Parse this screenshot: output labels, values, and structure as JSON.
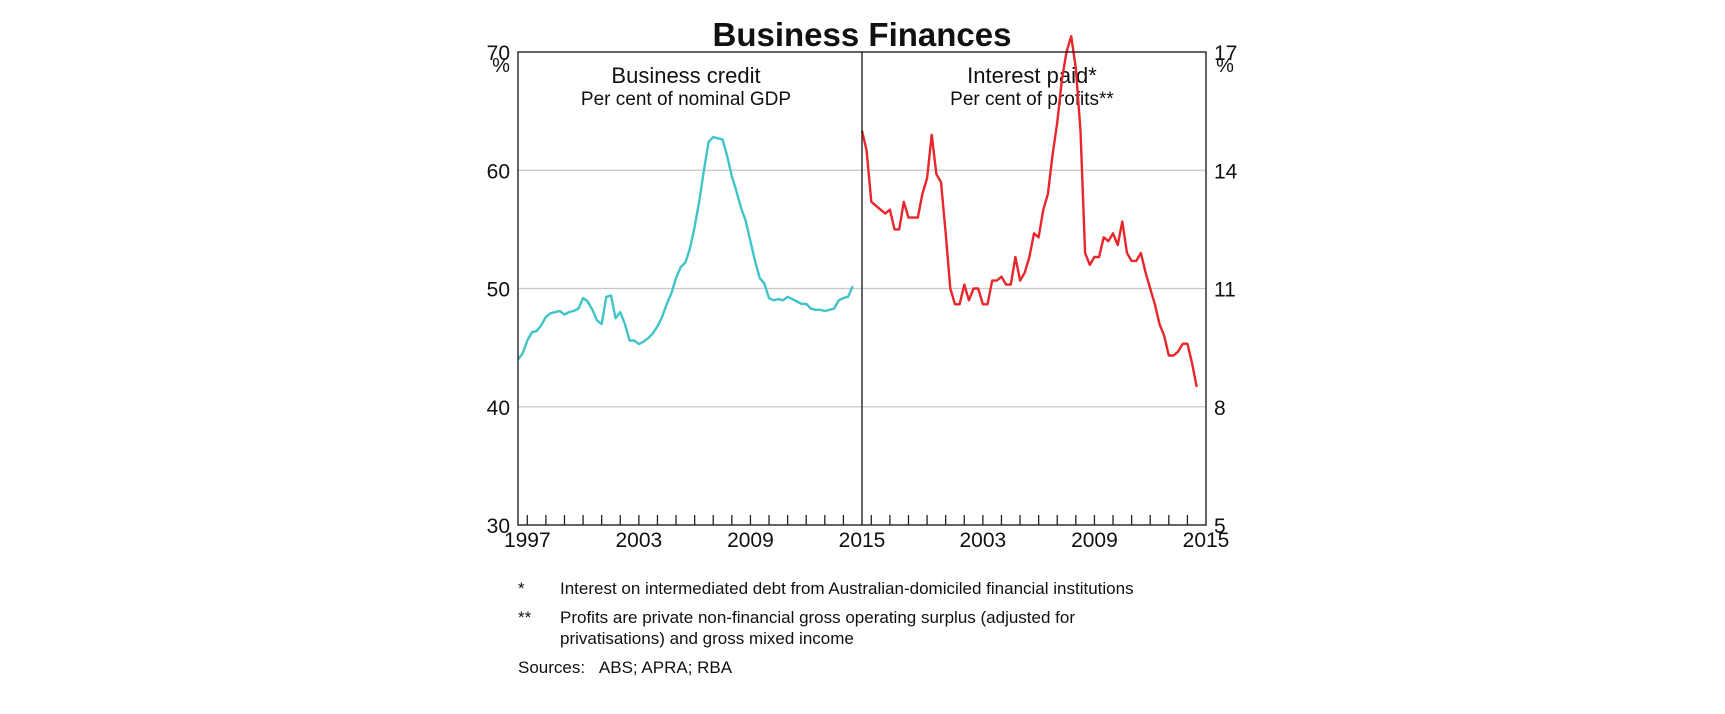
{
  "title": "Business Finances",
  "chart_data": [
    {
      "type": "line",
      "title": "Business credit",
      "subtitle": "Per cent of nominal GDP",
      "ylabel": "%",
      "axis_side": "left",
      "ylim": [
        30,
        70
      ],
      "yticks": [
        30,
        40,
        50,
        60,
        70
      ],
      "xlim": [
        1997,
        2015.5
      ],
      "xticks": [
        1997,
        2003,
        2009,
        2015
      ],
      "grid": true,
      "series": [
        {
          "color": "#3fc4c8",
          "x": [
            1997.0,
            1997.25,
            1997.5,
            1997.75,
            1998.0,
            1998.25,
            1998.5,
            1998.75,
            1999.0,
            1999.25,
            1999.5,
            1999.75,
            2000.0,
            2000.25,
            2000.5,
            2000.75,
            2001.0,
            2001.25,
            2001.5,
            2001.75,
            2002.0,
            2002.25,
            2002.5,
            2002.75,
            2003.0,
            2003.25,
            2003.5,
            2003.75,
            2004.0,
            2004.25,
            2004.5,
            2004.75,
            2005.0,
            2005.25,
            2005.5,
            2005.75,
            2006.0,
            2006.25,
            2006.5,
            2006.75,
            2007.0,
            2007.25,
            2007.5,
            2007.75,
            2008.0,
            2008.25,
            2008.5,
            2008.75,
            2009.0,
            2009.25,
            2009.5,
            2009.75,
            2010.0,
            2010.25,
            2010.5,
            2010.75,
            2011.0,
            2011.25,
            2011.5,
            2011.75,
            2012.0,
            2012.25,
            2012.5,
            2012.75,
            2013.0,
            2013.25,
            2013.5,
            2013.75,
            2014.0,
            2014.25,
            2014.5,
            2014.75,
            2015.0
          ],
          "values": [
            44.0,
            44.5,
            45.6,
            46.3,
            46.4,
            46.9,
            47.6,
            47.9,
            48.0,
            48.1,
            47.8,
            48.0,
            48.1,
            48.3,
            49.2,
            48.9,
            48.2,
            47.3,
            47.0,
            49.3,
            49.4,
            47.5,
            48.0,
            47.0,
            45.6,
            45.6,
            45.3,
            45.5,
            45.8,
            46.2,
            46.8,
            47.6,
            48.7,
            49.6,
            50.9,
            51.8,
            52.2,
            53.4,
            55.2,
            57.4,
            60.0,
            62.4,
            62.8,
            62.7,
            62.6,
            61.2,
            59.5,
            58.2,
            56.8,
            55.7,
            54.0,
            52.3,
            50.9,
            50.4,
            49.2,
            49.0,
            49.1,
            49.0,
            49.3,
            49.1,
            48.9,
            48.7,
            48.7,
            48.3,
            48.2,
            48.2,
            48.1,
            48.2,
            48.3,
            49.0,
            49.2,
            49.3,
            50.2
          ]
        }
      ]
    },
    {
      "type": "line",
      "title": "Interest paid*",
      "subtitle": "Per cent of profits**",
      "ylabel": "%",
      "axis_side": "right",
      "ylim": [
        5,
        17
      ],
      "yticks": [
        5,
        8,
        11,
        14,
        17
      ],
      "xlim": [
        1997,
        2015.5
      ],
      "xticks": [
        2003,
        2009,
        2015
      ],
      "grid": true,
      "series": [
        {
          "color": "#e8262b",
          "x": [
            1997.0,
            1997.25,
            1997.5,
            1997.75,
            1998.0,
            1998.25,
            1998.5,
            1998.75,
            1999.0,
            1999.25,
            1999.5,
            1999.75,
            2000.0,
            2000.25,
            2000.5,
            2000.75,
            2001.0,
            2001.25,
            2001.5,
            2001.75,
            2002.0,
            2002.25,
            2002.5,
            2002.75,
            2003.0,
            2003.25,
            2003.5,
            2003.75,
            2004.0,
            2004.25,
            2004.5,
            2004.75,
            2005.0,
            2005.25,
            2005.5,
            2005.75,
            2006.0,
            2006.25,
            2006.5,
            2006.75,
            2007.0,
            2007.25,
            2007.5,
            2007.75,
            2008.0,
            2008.25,
            2008.5,
            2008.75,
            2009.0,
            2009.25,
            2009.5,
            2009.75,
            2010.0,
            2010.25,
            2010.5,
            2010.75,
            2011.0,
            2011.25,
            2011.5,
            2011.75,
            2012.0,
            2012.25,
            2012.5,
            2012.75,
            2013.0,
            2013.25,
            2013.5,
            2013.75,
            2014.0,
            2014.25,
            2014.5,
            2014.75,
            2015.0
          ],
          "values": [
            15.0,
            14.5,
            13.2,
            13.1,
            13.0,
            12.9,
            13.0,
            12.5,
            12.5,
            13.2,
            12.8,
            12.8,
            12.8,
            13.4,
            13.8,
            14.9,
            13.9,
            13.7,
            12.4,
            11.0,
            10.6,
            10.6,
            11.1,
            10.7,
            11.0,
            11.0,
            10.6,
            10.6,
            11.2,
            11.2,
            11.3,
            11.1,
            11.1,
            11.8,
            11.2,
            11.4,
            11.8,
            12.4,
            12.3,
            13.0,
            13.4,
            14.4,
            15.2,
            16.3,
            17.0,
            17.4,
            16.6,
            15.0,
            11.9,
            11.6,
            11.8,
            11.8,
            12.3,
            12.2,
            12.4,
            12.1,
            12.7,
            11.9,
            11.7,
            11.7,
            11.9,
            11.4,
            11.0,
            10.6,
            10.1,
            9.8,
            9.3,
            9.3,
            9.4,
            9.6,
            9.6,
            9.1,
            8.5
          ]
        }
      ]
    }
  ],
  "notes": [
    {
      "mark": "*",
      "text": "Interest on intermediated debt from Australian-domiciled financial institutions"
    },
    {
      "mark": "**",
      "text": "Profits are private non-financial gross operating surplus (adjusted for privatisations) and gross mixed income"
    }
  ],
  "sources": {
    "label": "Sources:",
    "text": "ABS; APRA; RBA"
  }
}
